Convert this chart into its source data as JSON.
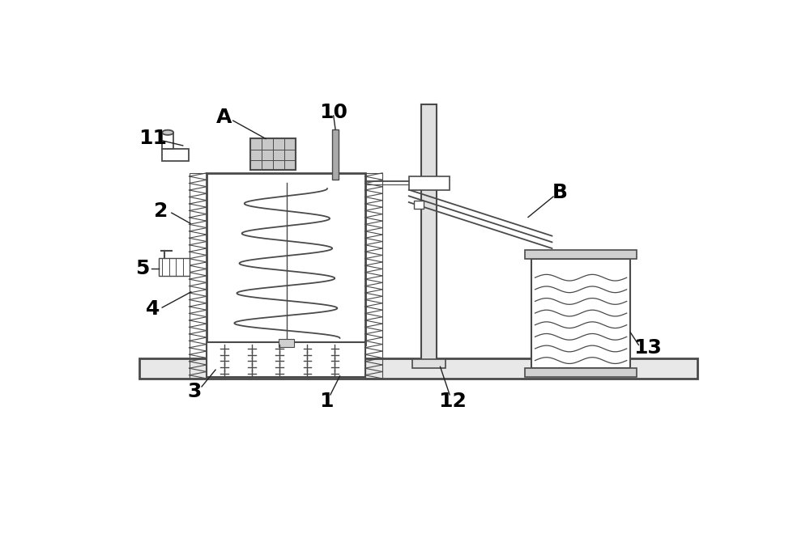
{
  "bg_color": "#ffffff",
  "line_color": "#4a4a4a",
  "line_width": 1.5,
  "fig_width": 10.0,
  "fig_height": 6.91
}
